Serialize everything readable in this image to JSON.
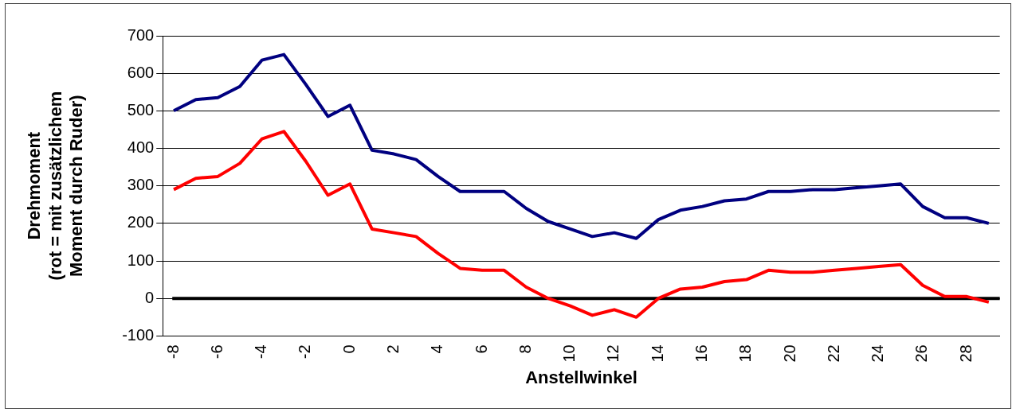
{
  "chart_data": {
    "type": "line",
    "xlabel": "Anstellwinkel",
    "ylabel": "Drehmoment\n(rot = mit zusätzlichem\nMoment durch Ruder)",
    "categories": [
      "-8",
      null,
      "-6",
      null,
      "-4",
      null,
      "-2",
      null,
      "0",
      null,
      "2",
      null,
      "4",
      null,
      "6",
      null,
      "8",
      null,
      "10",
      null,
      "12",
      null,
      "14",
      null,
      "16",
      null,
      "18",
      null,
      "20",
      null,
      "22",
      null,
      "24",
      null,
      "26",
      null,
      "28",
      null
    ],
    "series": [
      {
        "color": "#000080",
        "values": [
          500,
          530,
          535,
          565,
          635,
          650,
          570,
          485,
          515,
          395,
          385,
          370,
          325,
          285,
          285,
          285,
          240,
          205,
          185,
          165,
          175,
          160,
          210,
          235,
          245,
          260,
          265,
          285,
          285,
          290,
          290,
          295,
          300,
          305,
          245,
          215,
          215,
          200
        ]
      },
      {
        "color": "#ff0000",
        "values": [
          290,
          320,
          325,
          360,
          425,
          445,
          365,
          275,
          305,
          185,
          175,
          165,
          120,
          80,
          75,
          75,
          30,
          0,
          -20,
          -45,
          -30,
          -50,
          0,
          25,
          30,
          45,
          50,
          75,
          70,
          70,
          75,
          80,
          85,
          90,
          35,
          5,
          5,
          -10
        ]
      }
    ],
    "ylim": [
      -100,
      700
    ],
    "yticks": [
      -100,
      0,
      100,
      200,
      300,
      400,
      500,
      600,
      700
    ],
    "grid": "y",
    "legend": false,
    "marker": "none",
    "line_style": "solid",
    "ref_lines": [
      {
        "axis": "y",
        "value": 0,
        "color": "#000000"
      }
    ]
  }
}
